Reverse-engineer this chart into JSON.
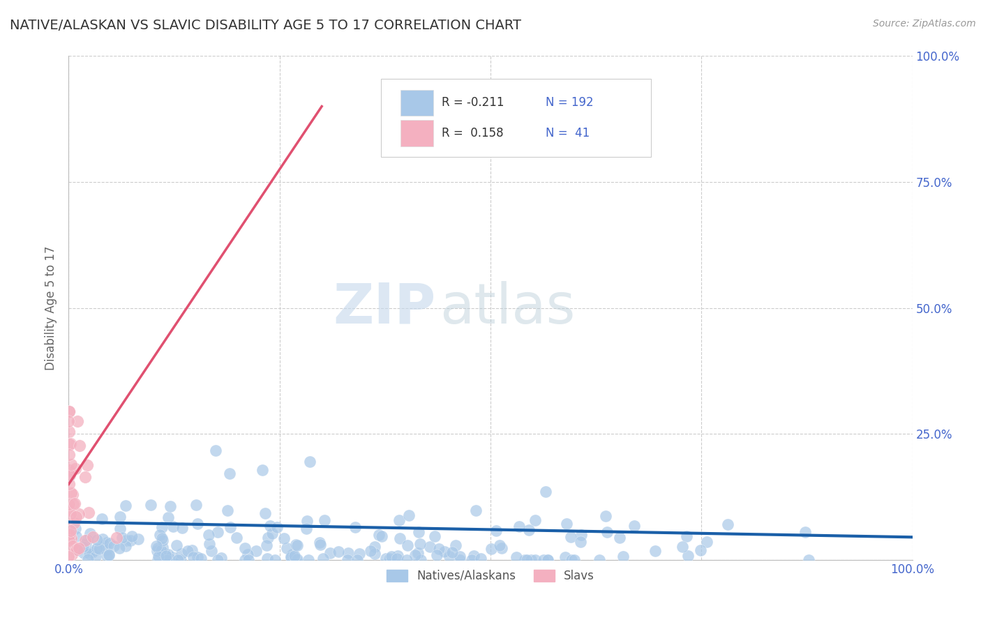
{
  "title": "NATIVE/ALASKAN VS SLAVIC DISABILITY AGE 5 TO 17 CORRELATION CHART",
  "source": "Source: ZipAtlas.com",
  "ylabel": "Disability Age 5 to 17",
  "xlim": [
    0,
    1
  ],
  "ylim": [
    0,
    1
  ],
  "blue_color": "#a8c8e8",
  "pink_color": "#f4b0c0",
  "blue_line_color": "#1a5fa8",
  "pink_line_color": "#e05070",
  "blue_R": -0.211,
  "blue_N": 192,
  "pink_R": 0.158,
  "pink_N": 41,
  "legend_label_blue": "Natives/Alaskans",
  "legend_label_pink": "Slavs",
  "watermark_zip": "ZIP",
  "watermark_atlas": "atlas",
  "background_color": "#ffffff",
  "grid_color": "#cccccc",
  "title_color": "#333333",
  "title_fontsize": 14,
  "axis_label_color": "#666666",
  "tick_color": "#4466cc",
  "right_ytick_labels": [
    "",
    "25.0%",
    "50.0%",
    "75.0%",
    "100.0%"
  ],
  "left_ytick_labels": [
    "",
    "",
    "",
    "",
    ""
  ],
  "xtick_labels": [
    "0.0%",
    "",
    "",
    "",
    "100.0%"
  ]
}
